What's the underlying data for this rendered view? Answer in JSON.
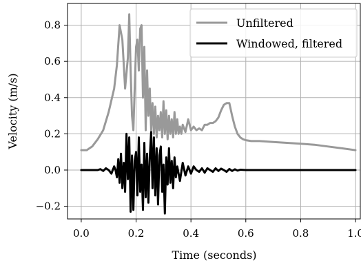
{
  "chart_data": {
    "type": "line",
    "xlabel": "Time (seconds)",
    "ylabel": "Velocity (m/s)",
    "xlim": [
      -0.05,
      1.02
    ],
    "ylim": [
      -0.27,
      0.92
    ],
    "xticks": [
      0.0,
      0.2,
      0.4,
      0.6,
      0.8,
      1.0
    ],
    "xtick_labels": [
      "0.0",
      "0.2",
      "0.4",
      "0.6",
      "0.8",
      "1.0"
    ],
    "yticks": [
      -0.2,
      0.0,
      0.2,
      0.4,
      0.6,
      0.8
    ],
    "ytick_labels": [
      "−0.2",
      "0.0",
      "0.2",
      "0.4",
      "0.6",
      "0.8"
    ],
    "grid": true,
    "legend_position": "top-right",
    "series": [
      {
        "name": "Unfiltered",
        "color": "#999999",
        "x": [
          0.0,
          0.02,
          0.04,
          0.06,
          0.08,
          0.1,
          0.12,
          0.13,
          0.14,
          0.15,
          0.16,
          0.17,
          0.175,
          0.18,
          0.185,
          0.19,
          0.195,
          0.2,
          0.205,
          0.21,
          0.215,
          0.22,
          0.225,
          0.23,
          0.235,
          0.24,
          0.245,
          0.25,
          0.255,
          0.26,
          0.265,
          0.27,
          0.275,
          0.28,
          0.285,
          0.29,
          0.295,
          0.3,
          0.305,
          0.31,
          0.315,
          0.32,
          0.325,
          0.33,
          0.335,
          0.34,
          0.345,
          0.35,
          0.355,
          0.36,
          0.365,
          0.37,
          0.38,
          0.39,
          0.4,
          0.41,
          0.42,
          0.43,
          0.44,
          0.45,
          0.46,
          0.47,
          0.48,
          0.49,
          0.5,
          0.51,
          0.52,
          0.53,
          0.54,
          0.55,
          0.56,
          0.57,
          0.58,
          0.59,
          0.6,
          0.62,
          0.65,
          0.7,
          0.75,
          0.8,
          0.85,
          0.9,
          0.95,
          1.0
        ],
        "y": [
          0.11,
          0.11,
          0.13,
          0.17,
          0.22,
          0.32,
          0.45,
          0.58,
          0.8,
          0.72,
          0.45,
          0.62,
          0.86,
          0.55,
          0.3,
          0.22,
          0.45,
          0.68,
          0.72,
          0.55,
          0.78,
          0.8,
          0.4,
          0.68,
          0.22,
          0.55,
          0.3,
          0.45,
          0.22,
          0.37,
          0.2,
          0.35,
          0.18,
          0.3,
          0.22,
          0.32,
          0.18,
          0.38,
          0.2,
          0.33,
          0.17,
          0.3,
          0.2,
          0.28,
          0.18,
          0.32,
          0.2,
          0.28,
          0.2,
          0.24,
          0.2,
          0.25,
          0.21,
          0.28,
          0.22,
          0.24,
          0.22,
          0.23,
          0.22,
          0.25,
          0.25,
          0.26,
          0.26,
          0.27,
          0.29,
          0.33,
          0.36,
          0.37,
          0.37,
          0.3,
          0.24,
          0.2,
          0.18,
          0.17,
          0.165,
          0.16,
          0.16,
          0.155,
          0.15,
          0.145,
          0.14,
          0.13,
          0.12,
          0.11
        ]
      },
      {
        "name": "Windowed, filtered",
        "color": "#000000",
        "x": [
          0.0,
          0.02,
          0.04,
          0.06,
          0.07,
          0.08,
          0.09,
          0.1,
          0.11,
          0.12,
          0.125,
          0.13,
          0.135,
          0.14,
          0.145,
          0.15,
          0.155,
          0.16,
          0.165,
          0.17,
          0.175,
          0.18,
          0.185,
          0.19,
          0.195,
          0.2,
          0.205,
          0.21,
          0.215,
          0.22,
          0.225,
          0.23,
          0.235,
          0.24,
          0.245,
          0.25,
          0.255,
          0.26,
          0.265,
          0.27,
          0.275,
          0.28,
          0.285,
          0.29,
          0.295,
          0.3,
          0.305,
          0.31,
          0.315,
          0.32,
          0.325,
          0.33,
          0.335,
          0.34,
          0.345,
          0.35,
          0.36,
          0.37,
          0.38,
          0.39,
          0.4,
          0.41,
          0.42,
          0.43,
          0.44,
          0.45,
          0.46,
          0.47,
          0.48,
          0.49,
          0.5,
          0.51,
          0.52,
          0.53,
          0.54,
          0.55,
          0.56,
          0.57,
          0.58,
          0.6,
          0.65,
          0.7,
          0.8,
          0.9,
          1.0
        ],
        "y": [
          0.0,
          0.0,
          0.0,
          0.0,
          0.005,
          -0.005,
          0.01,
          0.0,
          -0.02,
          0.02,
          0.0,
          -0.04,
          0.06,
          -0.07,
          0.09,
          -0.1,
          0.04,
          -0.12,
          0.2,
          -0.05,
          0.18,
          -0.23,
          0.08,
          -0.22,
          0.05,
          0.1,
          -0.14,
          0.18,
          -0.12,
          0.03,
          -0.22,
          0.15,
          -0.15,
          0.09,
          -0.18,
          0.07,
          0.21,
          -0.1,
          0.18,
          -0.14,
          0.12,
          -0.19,
          0.08,
          0.13,
          -0.12,
          0.03,
          -0.24,
          0.07,
          -0.08,
          0.12,
          -0.07,
          0.05,
          -0.1,
          0.07,
          -0.04,
          0.02,
          -0.06,
          0.04,
          -0.03,
          0.02,
          -0.02,
          0.02,
          0.0,
          -0.01,
          0.01,
          -0.015,
          0.01,
          0.0,
          -0.01,
          0.01,
          -0.005,
          0.008,
          0.0,
          -0.01,
          0.006,
          -0.005,
          0.004,
          -0.003,
          0.002,
          0.0,
          0.0,
          0.0,
          0.0,
          0.0,
          0.0
        ]
      }
    ]
  }
}
